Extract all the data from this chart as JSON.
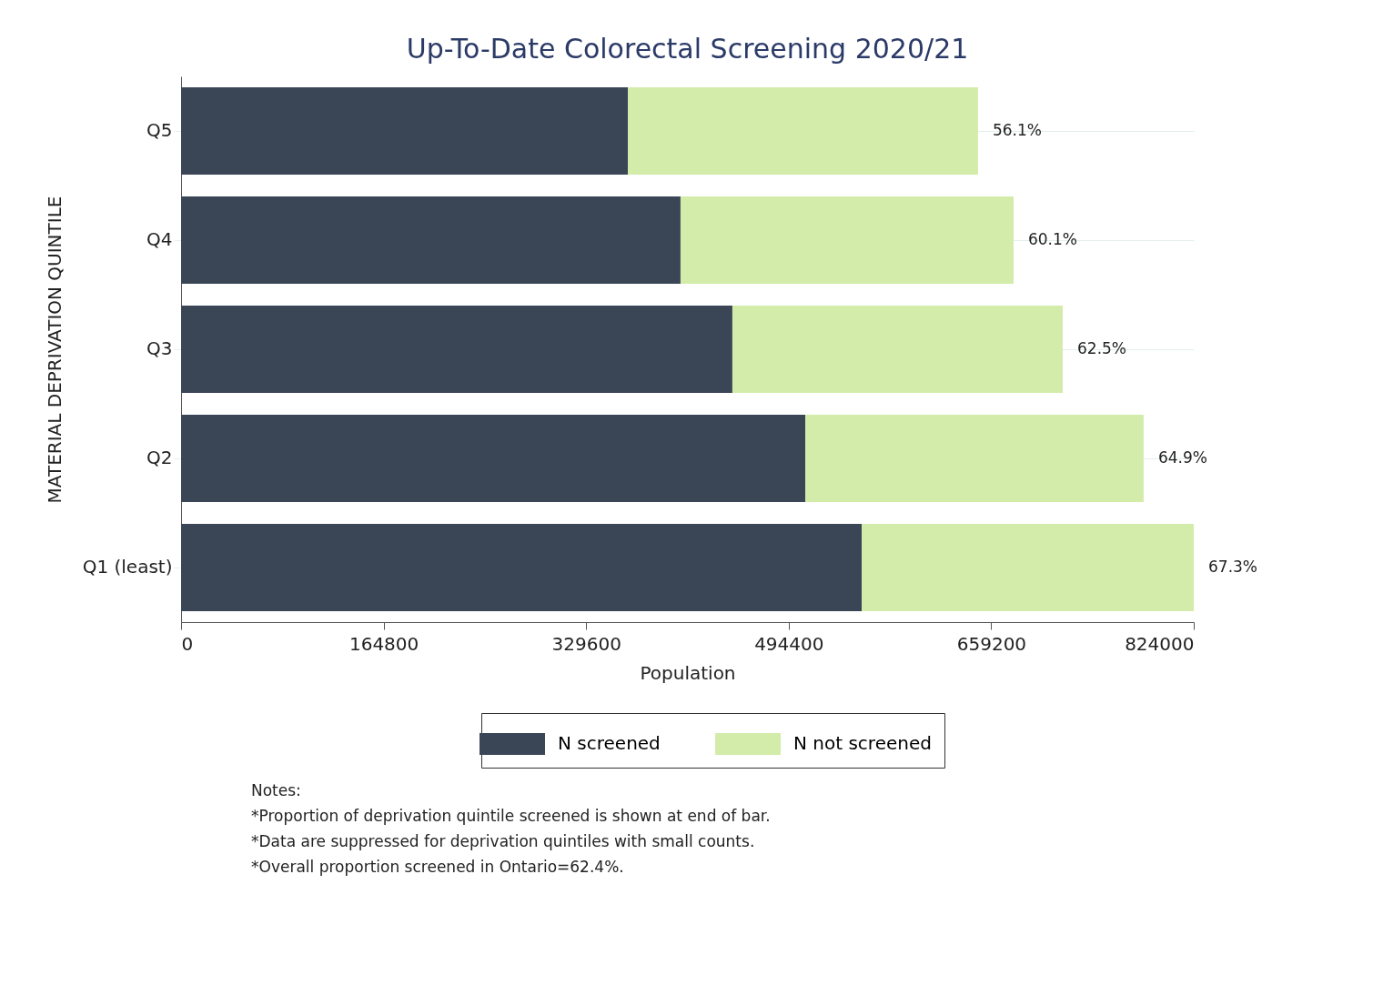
{
  "chart_data": {
    "type": "bar",
    "orientation": "horizontal",
    "stacked": true,
    "title": "Up-To-Date Colorectal Screening 2020/21",
    "xlabel": "Population",
    "ylabel": "MATERIAL DEPRIVATION QUINTILE",
    "categories": [
      "Q5",
      "Q4",
      "Q3",
      "Q2",
      "Q1 (least)"
    ],
    "series": [
      {
        "name": "N screened",
        "color": "#3a4556",
        "values": [
          363500,
          406400,
          448600,
          507900,
          553800
        ]
      },
      {
        "name": "N not screened",
        "color": "#d3ecaa",
        "values": [
          285000,
          271000,
          268800,
          275300,
          270200
        ]
      }
    ],
    "xlim": [
      0,
      824000
    ],
    "xticks": [
      0,
      164800,
      329600,
      494400,
      659200,
      824000
    ],
    "grid": "y",
    "legend": "bottom",
    "annotations": [
      {
        "text": "56.1%",
        "x": 648500,
        "y": "Q5"
      },
      {
        "text": "60.1%",
        "x": 677400,
        "y": "Q4"
      },
      {
        "text": "62.5%",
        "x": 717400,
        "y": "Q3"
      },
      {
        "text": "64.9%",
        "x": 783200,
        "y": "Q2"
      },
      {
        "text": "67.3%",
        "x": 824000,
        "y": "Q1 (least)"
      },
      "Notes:",
      "*Proportion of deprivation quintile screened is shown at end of bar.",
      "*Data are suppressed for deprivation quintiles with small counts.",
      "*Overall proportion screened in Ontario=62.4%."
    ]
  }
}
